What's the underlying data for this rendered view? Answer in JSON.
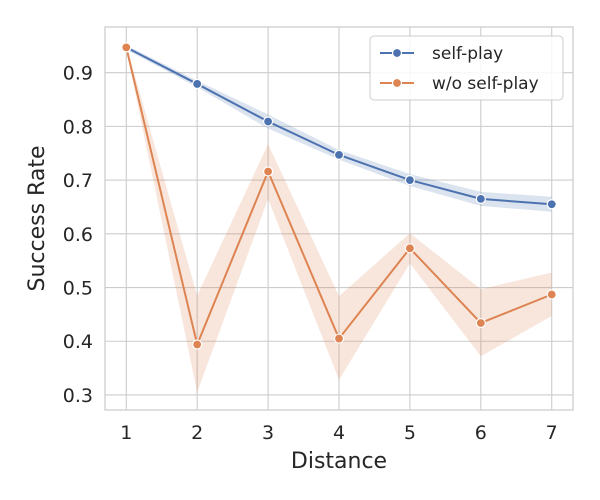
{
  "chart_data": {
    "type": "line",
    "title": "",
    "xlabel": "Distance",
    "ylabel": "Success Rate",
    "x": [
      1,
      2,
      3,
      4,
      5,
      6,
      7
    ],
    "x_ticks": [
      "1",
      "2",
      "3",
      "4",
      "5",
      "6",
      "7"
    ],
    "y_ticks": [
      "0.3",
      "0.4",
      "0.5",
      "0.6",
      "0.7",
      "0.8",
      "0.9"
    ],
    "xlim": [
      0.7,
      7.3
    ],
    "ylim": [
      0.272,
      0.985
    ],
    "grid": true,
    "legend_position": "top-right",
    "series": [
      {
        "name": "self-play",
        "color": "#4c72b0",
        "values": [
          0.947,
          0.879,
          0.809,
          0.747,
          0.7,
          0.665,
          0.655
        ],
        "ci_lower": [
          0.943,
          0.873,
          0.796,
          0.738,
          0.689,
          0.652,
          0.641
        ],
        "ci_upper": [
          0.951,
          0.885,
          0.822,
          0.756,
          0.711,
          0.678,
          0.669
        ]
      },
      {
        "name": "w/o self-play",
        "color": "#dd8452",
        "values": [
          0.947,
          0.394,
          0.716,
          0.405,
          0.573,
          0.434,
          0.487
        ],
        "ci_lower": [
          0.943,
          0.305,
          0.665,
          0.328,
          0.545,
          0.372,
          0.447
        ],
        "ci_upper": [
          0.951,
          0.485,
          0.767,
          0.484,
          0.601,
          0.497,
          0.528
        ]
      }
    ]
  }
}
